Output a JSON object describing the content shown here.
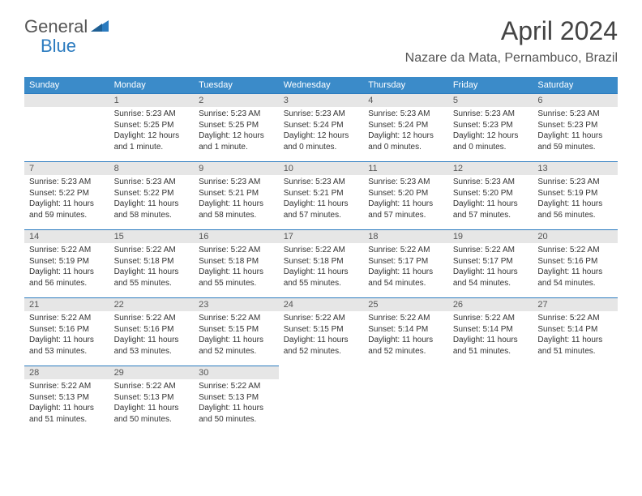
{
  "logo": {
    "text1": "General",
    "text2": "Blue"
  },
  "title": "April 2024",
  "location": "Nazare da Mata, Pernambuco, Brazil",
  "colors": {
    "header_bg": "#3b8bc9",
    "header_text": "#ffffff",
    "daynum_bg": "#e6e6e6",
    "border": "#2b7bbf",
    "logo_gray": "#555555",
    "logo_blue": "#2b7bbf",
    "body_text": "#333333"
  },
  "weekdays": [
    "Sunday",
    "Monday",
    "Tuesday",
    "Wednesday",
    "Thursday",
    "Friday",
    "Saturday"
  ],
  "grid": {
    "leading_empty": 1,
    "trailing_empty": 4,
    "rows": 5,
    "cols": 7
  },
  "days": [
    {
      "n": "1",
      "sr": "Sunrise: 5:23 AM",
      "ss": "Sunset: 5:25 PM",
      "dl": "Daylight: 12 hours and 1 minute."
    },
    {
      "n": "2",
      "sr": "Sunrise: 5:23 AM",
      "ss": "Sunset: 5:25 PM",
      "dl": "Daylight: 12 hours and 1 minute."
    },
    {
      "n": "3",
      "sr": "Sunrise: 5:23 AM",
      "ss": "Sunset: 5:24 PM",
      "dl": "Daylight: 12 hours and 0 minutes."
    },
    {
      "n": "4",
      "sr": "Sunrise: 5:23 AM",
      "ss": "Sunset: 5:24 PM",
      "dl": "Daylight: 12 hours and 0 minutes."
    },
    {
      "n": "5",
      "sr": "Sunrise: 5:23 AM",
      "ss": "Sunset: 5:23 PM",
      "dl": "Daylight: 12 hours and 0 minutes."
    },
    {
      "n": "6",
      "sr": "Sunrise: 5:23 AM",
      "ss": "Sunset: 5:23 PM",
      "dl": "Daylight: 11 hours and 59 minutes."
    },
    {
      "n": "7",
      "sr": "Sunrise: 5:23 AM",
      "ss": "Sunset: 5:22 PM",
      "dl": "Daylight: 11 hours and 59 minutes."
    },
    {
      "n": "8",
      "sr": "Sunrise: 5:23 AM",
      "ss": "Sunset: 5:22 PM",
      "dl": "Daylight: 11 hours and 58 minutes."
    },
    {
      "n": "9",
      "sr": "Sunrise: 5:23 AM",
      "ss": "Sunset: 5:21 PM",
      "dl": "Daylight: 11 hours and 58 minutes."
    },
    {
      "n": "10",
      "sr": "Sunrise: 5:23 AM",
      "ss": "Sunset: 5:21 PM",
      "dl": "Daylight: 11 hours and 57 minutes."
    },
    {
      "n": "11",
      "sr": "Sunrise: 5:23 AM",
      "ss": "Sunset: 5:20 PM",
      "dl": "Daylight: 11 hours and 57 minutes."
    },
    {
      "n": "12",
      "sr": "Sunrise: 5:23 AM",
      "ss": "Sunset: 5:20 PM",
      "dl": "Daylight: 11 hours and 57 minutes."
    },
    {
      "n": "13",
      "sr": "Sunrise: 5:23 AM",
      "ss": "Sunset: 5:19 PM",
      "dl": "Daylight: 11 hours and 56 minutes."
    },
    {
      "n": "14",
      "sr": "Sunrise: 5:22 AM",
      "ss": "Sunset: 5:19 PM",
      "dl": "Daylight: 11 hours and 56 minutes."
    },
    {
      "n": "15",
      "sr": "Sunrise: 5:22 AM",
      "ss": "Sunset: 5:18 PM",
      "dl": "Daylight: 11 hours and 55 minutes."
    },
    {
      "n": "16",
      "sr": "Sunrise: 5:22 AM",
      "ss": "Sunset: 5:18 PM",
      "dl": "Daylight: 11 hours and 55 minutes."
    },
    {
      "n": "17",
      "sr": "Sunrise: 5:22 AM",
      "ss": "Sunset: 5:18 PM",
      "dl": "Daylight: 11 hours and 55 minutes."
    },
    {
      "n": "18",
      "sr": "Sunrise: 5:22 AM",
      "ss": "Sunset: 5:17 PM",
      "dl": "Daylight: 11 hours and 54 minutes."
    },
    {
      "n": "19",
      "sr": "Sunrise: 5:22 AM",
      "ss": "Sunset: 5:17 PM",
      "dl": "Daylight: 11 hours and 54 minutes."
    },
    {
      "n": "20",
      "sr": "Sunrise: 5:22 AM",
      "ss": "Sunset: 5:16 PM",
      "dl": "Daylight: 11 hours and 54 minutes."
    },
    {
      "n": "21",
      "sr": "Sunrise: 5:22 AM",
      "ss": "Sunset: 5:16 PM",
      "dl": "Daylight: 11 hours and 53 minutes."
    },
    {
      "n": "22",
      "sr": "Sunrise: 5:22 AM",
      "ss": "Sunset: 5:16 PM",
      "dl": "Daylight: 11 hours and 53 minutes."
    },
    {
      "n": "23",
      "sr": "Sunrise: 5:22 AM",
      "ss": "Sunset: 5:15 PM",
      "dl": "Daylight: 11 hours and 52 minutes."
    },
    {
      "n": "24",
      "sr": "Sunrise: 5:22 AM",
      "ss": "Sunset: 5:15 PM",
      "dl": "Daylight: 11 hours and 52 minutes."
    },
    {
      "n": "25",
      "sr": "Sunrise: 5:22 AM",
      "ss": "Sunset: 5:14 PM",
      "dl": "Daylight: 11 hours and 52 minutes."
    },
    {
      "n": "26",
      "sr": "Sunrise: 5:22 AM",
      "ss": "Sunset: 5:14 PM",
      "dl": "Daylight: 11 hours and 51 minutes."
    },
    {
      "n": "27",
      "sr": "Sunrise: 5:22 AM",
      "ss": "Sunset: 5:14 PM",
      "dl": "Daylight: 11 hours and 51 minutes."
    },
    {
      "n": "28",
      "sr": "Sunrise: 5:22 AM",
      "ss": "Sunset: 5:13 PM",
      "dl": "Daylight: 11 hours and 51 minutes."
    },
    {
      "n": "29",
      "sr": "Sunrise: 5:22 AM",
      "ss": "Sunset: 5:13 PM",
      "dl": "Daylight: 11 hours and 50 minutes."
    },
    {
      "n": "30",
      "sr": "Sunrise: 5:22 AM",
      "ss": "Sunset: 5:13 PM",
      "dl": "Daylight: 11 hours and 50 minutes."
    }
  ]
}
